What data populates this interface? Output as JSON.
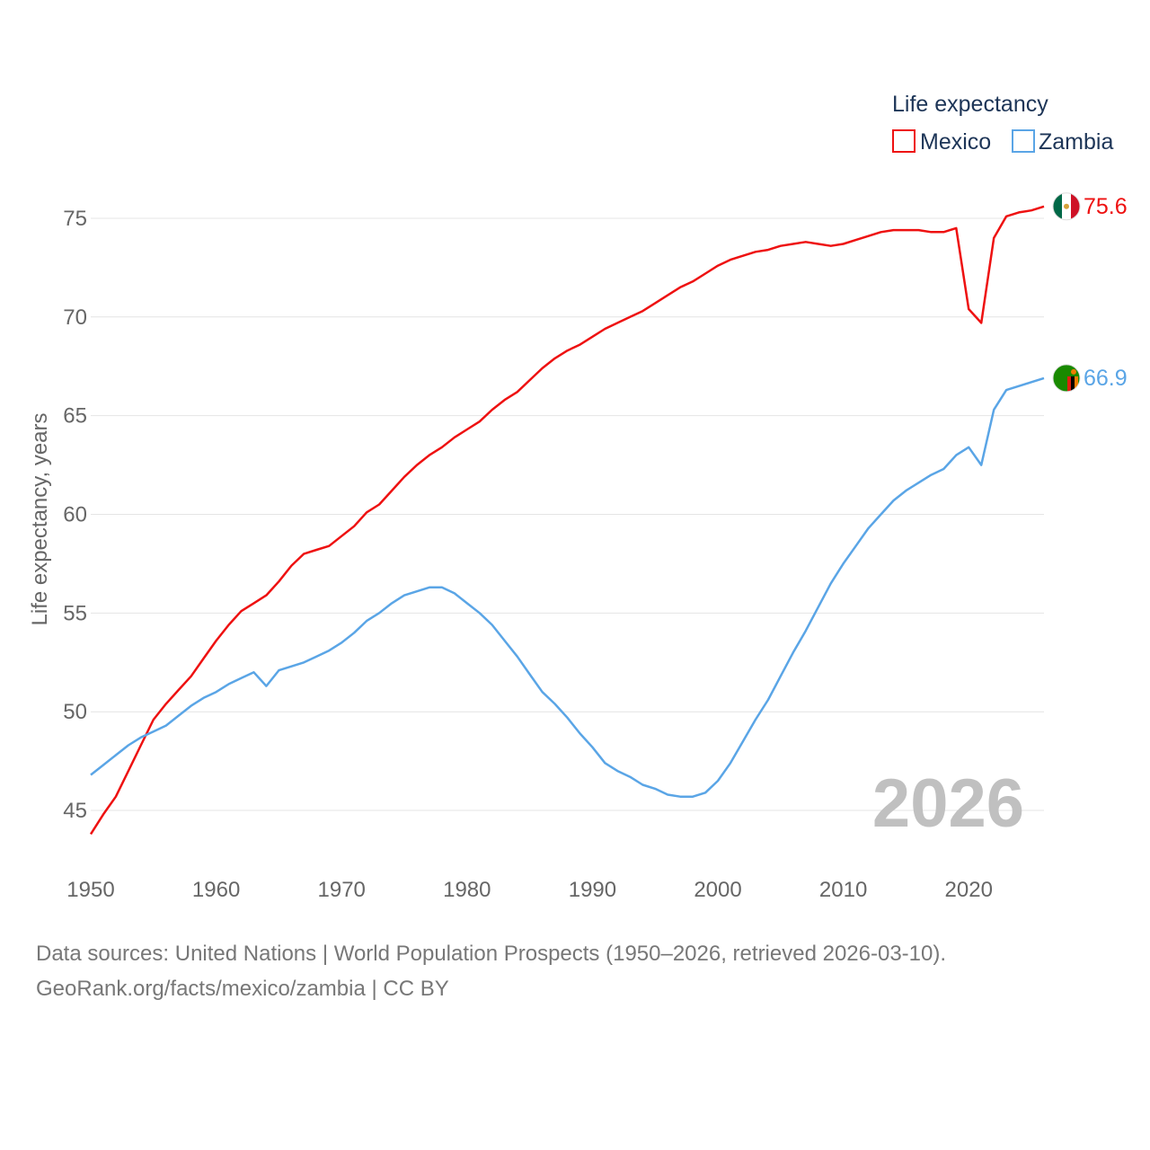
{
  "chart_data": {
    "type": "line",
    "title": "",
    "xlabel": "",
    "ylabel": "Life expectancy, years",
    "xlim": [
      1950,
      2026
    ],
    "ylim": [
      43.5,
      76.5
    ],
    "x_ticks": [
      1950,
      1960,
      1970,
      1980,
      1990,
      2000,
      2010,
      2020
    ],
    "y_ticks": [
      45,
      50,
      55,
      60,
      65,
      70,
      75
    ],
    "legend": {
      "title": "Life expectancy",
      "position": "top-right",
      "items": [
        "Mexico",
        "Zambia"
      ]
    },
    "year_overlay": "2026",
    "series": [
      {
        "name": "Mexico",
        "color": "#ee1111",
        "end_label": "75.6",
        "flag": "mexico-flag",
        "x": [
          1950,
          1951,
          1952,
          1953,
          1954,
          1955,
          1956,
          1957,
          1958,
          1959,
          1960,
          1961,
          1962,
          1963,
          1964,
          1965,
          1966,
          1967,
          1968,
          1969,
          1970,
          1971,
          1972,
          1973,
          1974,
          1975,
          1976,
          1977,
          1978,
          1979,
          1980,
          1981,
          1982,
          1983,
          1984,
          1985,
          1986,
          1987,
          1988,
          1989,
          1990,
          1991,
          1992,
          1993,
          1994,
          1995,
          1996,
          1997,
          1998,
          1999,
          2000,
          2001,
          2002,
          2003,
          2004,
          2005,
          2006,
          2007,
          2008,
          2009,
          2010,
          2011,
          2012,
          2013,
          2014,
          2015,
          2016,
          2017,
          2018,
          2019,
          2020,
          2021,
          2022,
          2023,
          2024,
          2025,
          2026
        ],
        "values": [
          43.8,
          44.8,
          45.7,
          47.0,
          48.3,
          49.6,
          50.4,
          51.1,
          51.8,
          52.7,
          53.6,
          54.4,
          55.1,
          55.5,
          55.9,
          56.6,
          57.4,
          58.0,
          58.2,
          58.4,
          58.9,
          59.4,
          60.1,
          60.5,
          61.2,
          61.9,
          62.5,
          63.0,
          63.4,
          63.9,
          64.3,
          64.7,
          65.3,
          65.8,
          66.2,
          66.8,
          67.4,
          67.9,
          68.3,
          68.6,
          69.0,
          69.4,
          69.7,
          70.0,
          70.3,
          70.7,
          71.1,
          71.5,
          71.8,
          72.2,
          72.6,
          72.9,
          73.1,
          73.3,
          73.4,
          73.6,
          73.7,
          73.8,
          73.7,
          73.6,
          73.7,
          73.9,
          74.1,
          74.3,
          74.4,
          74.4,
          74.4,
          74.3,
          74.3,
          74.5,
          70.4,
          69.7,
          74.0,
          75.1,
          75.3,
          75.4,
          75.6
        ]
      },
      {
        "name": "Zambia",
        "color": "#5aa5e6",
        "end_label": "66.9",
        "flag": "zambia-flag",
        "x": [
          1950,
          1951,
          1952,
          1953,
          1954,
          1955,
          1956,
          1957,
          1958,
          1959,
          1960,
          1961,
          1962,
          1963,
          1964,
          1965,
          1966,
          1967,
          1968,
          1969,
          1970,
          1971,
          1972,
          1973,
          1974,
          1975,
          1976,
          1977,
          1978,
          1979,
          1980,
          1981,
          1982,
          1983,
          1984,
          1985,
          1986,
          1987,
          1988,
          1989,
          1990,
          1991,
          1992,
          1993,
          1994,
          1995,
          1996,
          1997,
          1998,
          1999,
          2000,
          2001,
          2002,
          2003,
          2004,
          2005,
          2006,
          2007,
          2008,
          2009,
          2010,
          2011,
          2012,
          2013,
          2014,
          2015,
          2016,
          2017,
          2018,
          2019,
          2020,
          2021,
          2022,
          2023,
          2024,
          2025,
          2026
        ],
        "values": [
          46.8,
          47.3,
          47.8,
          48.3,
          48.7,
          49.0,
          49.3,
          49.8,
          50.3,
          50.7,
          51.0,
          51.4,
          51.7,
          52.0,
          51.3,
          52.1,
          52.3,
          52.5,
          52.8,
          53.1,
          53.5,
          54.0,
          54.6,
          55.0,
          55.5,
          55.9,
          56.1,
          56.3,
          56.3,
          56.0,
          55.5,
          55.0,
          54.4,
          53.6,
          52.8,
          51.9,
          51.0,
          50.4,
          49.7,
          48.9,
          48.2,
          47.4,
          47.0,
          46.7,
          46.3,
          46.1,
          45.8,
          45.7,
          45.7,
          45.9,
          46.5,
          47.4,
          48.5,
          49.6,
          50.6,
          51.8,
          53.0,
          54.1,
          55.3,
          56.5,
          57.5,
          58.4,
          59.3,
          60.0,
          60.7,
          61.2,
          61.6,
          62.0,
          62.3,
          63.0,
          63.4,
          62.5,
          65.3,
          66.3,
          66.5,
          66.7,
          66.9
        ]
      }
    ]
  },
  "footer": {
    "line1": "Data sources: United Nations | World Population Prospects (1950–2026, retrieved 2026-03-10).",
    "line2": "GeoRank.org/facts/mexico/zambia | CC BY"
  }
}
